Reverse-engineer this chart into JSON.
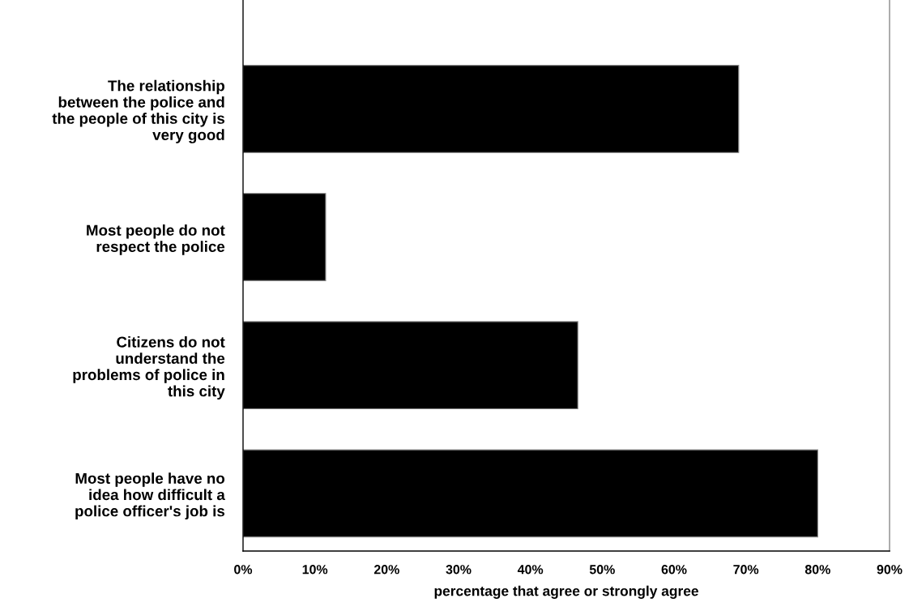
{
  "chart_data": {
    "type": "bar",
    "orientation": "horizontal",
    "xlabel": "percentage that agree or strongly agree",
    "categories": [
      "The relationship\nbetween the police and\nthe people of this city is\nvery good",
      "Most people do not\nrespect the police",
      "Citizens do not\nunderstand the\nproblems of police in\nthis city",
      "Most people have no\nidea how difficult a\npolice officer's job is"
    ],
    "values": [
      69,
      11.5,
      46.6,
      80
    ],
    "color": "#000000",
    "xlim": [
      0,
      90
    ],
    "xticks": [
      {
        "value": 0,
        "label": "0%"
      },
      {
        "value": 10,
        "label": "10%"
      },
      {
        "value": 20,
        "label": "20%"
      },
      {
        "value": 30,
        "label": "30%"
      },
      {
        "value": 40,
        "label": "40%"
      },
      {
        "value": 50,
        "label": "50%"
      },
      {
        "value": 60,
        "label": "60%"
      },
      {
        "value": 70,
        "label": "70%"
      },
      {
        "value": 80,
        "label": "80%"
      },
      {
        "value": 90,
        "label": "90%"
      }
    ],
    "grid": false,
    "legend": false
  }
}
